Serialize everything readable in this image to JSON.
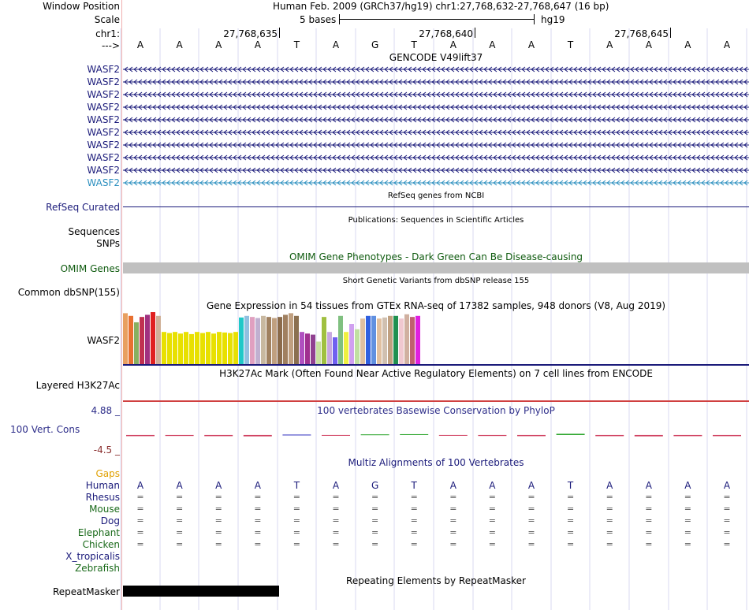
{
  "header": {
    "window_position_label": "Window Position",
    "window_position_value": "Human Feb. 2009 (GRCh37/hg19)   chr1:27,768,632-27,768,647 (16 bp)",
    "scale_label": "Scale",
    "scale_text": "5 bases",
    "scale_assembly": "hg19",
    "chrom_label": "chr1:",
    "positions": [
      "27,768,635",
      "27,768,640",
      "27,768,645"
    ],
    "strand_label": "--->"
  },
  "sequence": [
    "A",
    "A",
    "A",
    "A",
    "T",
    "A",
    "G",
    "T",
    "A",
    "A",
    "A",
    "T",
    "A",
    "A",
    "A",
    "A"
  ],
  "tracks": {
    "gencode": {
      "title": "GENCODE V49lift37",
      "labels": [
        "WASF2",
        "WASF2",
        "WASF2",
        "WASF2",
        "WASF2",
        "WASF2",
        "WASF2",
        "WASF2",
        "WASF2",
        "WASF2"
      ],
      "color": "#1a1a7a",
      "last_color": "#2b8fbf"
    },
    "refseq": {
      "title": "RefSeq genes from NCBI",
      "label": "RefSeq Curated",
      "color": "#1a1a7a"
    },
    "publications": {
      "title": "Publications: Sequences in Scientific Articles",
      "labels": [
        "Sequences",
        "SNPs"
      ]
    },
    "omim": {
      "title": "OMIM Gene Phenotypes - Dark Green Can Be Disease-causing",
      "label": "OMIM Genes",
      "color": "#0e5a0e",
      "bar_color": "#c0c0c0"
    },
    "dbsnp": {
      "title": "Short Genetic Variants from dbSNP release 155",
      "label": "Common dbSNP(155)"
    },
    "gtex": {
      "title": "Gene Expression in 54 tissues from GTEx RNA-seq of 17382 samples, 948 donors (V8, Aug 2019)",
      "label": "WASF2",
      "values": [
        0.95,
        0.9,
        0.78,
        0.88,
        0.92,
        0.97,
        0.9,
        0.6,
        0.58,
        0.6,
        0.57,
        0.6,
        0.56,
        0.6,
        0.58,
        0.6,
        0.57,
        0.6,
        0.59,
        0.58,
        0.6,
        0.87,
        0.9,
        0.88,
        0.86,
        0.9,
        0.88,
        0.86,
        0.88,
        0.92,
        0.95,
        0.9,
        0.6,
        0.57,
        0.55,
        0.42,
        0.88,
        0.6,
        0.5,
        0.9,
        0.6,
        0.75,
        0.65,
        0.85,
        0.9,
        0.9,
        0.85,
        0.87,
        0.9,
        0.9,
        0.85,
        0.93,
        0.88,
        0.9
      ],
      "colors": [
        "#e8a060",
        "#e87030",
        "#88b060",
        "#c03050",
        "#a03080",
        "#e02020",
        "#d0b098",
        "#e8e000",
        "#e8e000",
        "#e8e000",
        "#e8e000",
        "#e8e000",
        "#e8e000",
        "#e8e000",
        "#e8e000",
        "#e8e000",
        "#e8e000",
        "#e8e000",
        "#e8e000",
        "#e8e000",
        "#e8e000",
        "#20c8c8",
        "#90c0e0",
        "#e0a0c0",
        "#c0b0d0",
        "#c8b8a0",
        "#a08060",
        "#c0a080",
        "#8b6b4b",
        "#a08060",
        "#c0a080",
        "#8b7050",
        "#b050c0",
        "#a03090",
        "#904090",
        "#c8e0a0",
        "#a0c040",
        "#c8a8e0",
        "#7060f0",
        "#80c080",
        "#f0f040",
        "#d0a0f0",
        "#c0e0a0",
        "#e0c0a0",
        "#3060e0",
        "#6090e0",
        "#e0c0a0",
        "#d0c0b0",
        "#c0a080",
        "#209050",
        "#f0c8d0",
        "#d0b0a0",
        "#c06070",
        "#e020e0"
      ]
    },
    "h3k27ac": {
      "title": "H3K27Ac Mark (Often Found Near Active Regulatory Elements) on 7 cell lines from ENCODE",
      "label": "Layered H3K27Ac"
    },
    "conservation": {
      "title": "100 vertebrates Basewise Conservation by PhyloP",
      "label": "100 Vert. Cons",
      "max_label": "4.88 _",
      "min_label": "-4.5 _",
      "values": [
        -0.3,
        -0.25,
        -0.3,
        -0.35,
        0.1,
        -0.1,
        0.15,
        0.2,
        -0.2,
        -0.25,
        -0.3,
        0.3,
        -0.3,
        -0.35,
        -0.3,
        -0.3
      ],
      "title_color": "#2e2e8a"
    },
    "multiz": {
      "title": "Multiz Alignments of 100 Vertebrates",
      "gaps_label": "Gaps",
      "species": [
        {
          "name": "Human",
          "color": "#1a1a7a"
        },
        {
          "name": "Rhesus",
          "color": "#1a1a7a"
        },
        {
          "name": "Mouse",
          "color": "#1a6a1a"
        },
        {
          "name": "Dog",
          "color": "#1a1a7a"
        },
        {
          "name": "Elephant",
          "color": "#1a6a1a"
        },
        {
          "name": "Chicken",
          "color": "#1a6a1a"
        },
        {
          "name": "X_tropicalis",
          "color": "#1a1a7a"
        },
        {
          "name": "Zebrafish",
          "color": "#1a6a1a"
        }
      ],
      "aligned_symbol": "="
    },
    "repeatmasker": {
      "title": "Repeating Elements by RepeatMasker",
      "label": "RepeatMasker"
    }
  }
}
